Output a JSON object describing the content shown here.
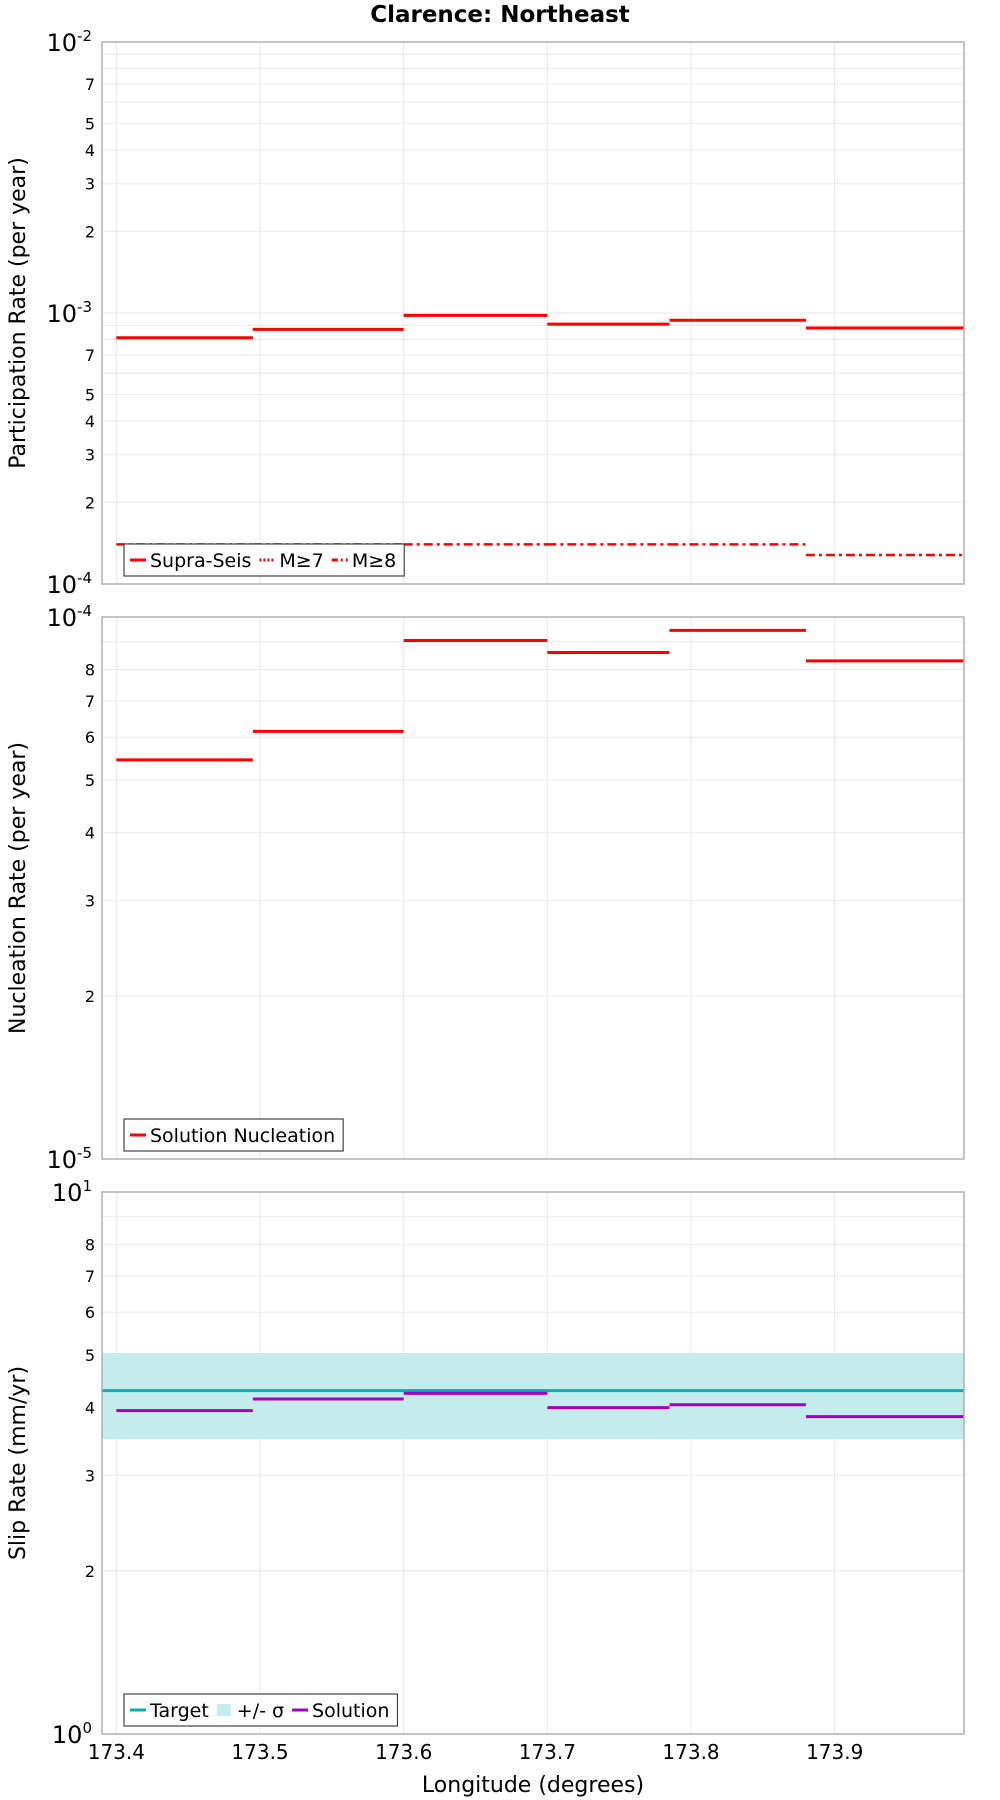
{
  "title": "Clarence: Northeast",
  "xlabel": "Longitude (degrees)",
  "xlim": [
    173.39,
    173.99
  ],
  "xticks": [
    "173.4",
    "173.5",
    "173.6",
    "173.7",
    "173.8",
    "173.9"
  ],
  "x_tick_values": [
    173.4,
    173.5,
    173.6,
    173.7,
    173.8,
    173.9
  ],
  "colors": {
    "red": "#ff0000",
    "teal": "#00b2b2",
    "band": "#c4ecec",
    "purple": "#a300c4",
    "grid": "#e8e8e8",
    "frame": "#b0b0b0"
  },
  "chart_data": [
    {
      "type": "line",
      "id": "participation",
      "ylabel": "Participation Rate (per year)",
      "yscale": "log",
      "ylim": [
        0.0001,
        0.01
      ],
      "decade_labels": [
        {
          "base": "10",
          "exp": "-4"
        },
        {
          "base": "10",
          "exp": "-3"
        },
        {
          "base": "10",
          "exp": "-2"
        }
      ],
      "minor_labels": [
        "2",
        "3",
        "4",
        "5",
        "7"
      ],
      "legend": [
        "Supra-Seis",
        "M≥7",
        "M≥8"
      ],
      "segments": [
        [
          173.4,
          173.495
        ],
        [
          173.495,
          173.6
        ],
        [
          173.6,
          173.7
        ],
        [
          173.7,
          173.785
        ],
        [
          173.785,
          173.88
        ],
        [
          173.88,
          173.99
        ]
      ],
      "series": [
        {
          "name": "Supra-Seis",
          "style": "solid",
          "values": [
            0.00081,
            0.00087,
            0.00098,
            0.00091,
            0.00094,
            0.00088
          ]
        },
        {
          "name": "M≥7",
          "style": "dotted",
          "values": [
            0.00081,
            0.00087,
            0.00098,
            0.00091,
            0.00094,
            0.00088
          ]
        },
        {
          "name": "M≥8",
          "style": "dashdot",
          "values": [
            0.00014,
            0.00014,
            0.00014,
            0.00014,
            0.00014,
            0.000128
          ]
        }
      ]
    },
    {
      "type": "line",
      "id": "nucleation",
      "ylabel": "Nucleation Rate (per year)",
      "yscale": "log",
      "ylim": [
        1e-05,
        0.0001
      ],
      "decade_labels": [
        {
          "base": "10",
          "exp": "-5"
        },
        {
          "base": "10",
          "exp": "-4"
        }
      ],
      "minor_labels": [
        "2",
        "3",
        "4",
        "5",
        "6",
        "7",
        "8"
      ],
      "legend": [
        "Solution Nucleation"
      ],
      "segments": [
        [
          173.4,
          173.495
        ],
        [
          173.495,
          173.6
        ],
        [
          173.6,
          173.7
        ],
        [
          173.7,
          173.785
        ],
        [
          173.785,
          173.88
        ],
        [
          173.88,
          173.99
        ]
      ],
      "series": [
        {
          "name": "Solution Nucleation",
          "style": "solid",
          "values": [
            5.45e-05,
            6.15e-05,
            9.05e-05,
            8.6e-05,
            9.45e-05,
            8.3e-05
          ]
        }
      ]
    },
    {
      "type": "line",
      "id": "slip",
      "ylabel": "Slip Rate (mm/yr)",
      "yscale": "log",
      "ylim": [
        1,
        10
      ],
      "decade_labels": [
        {
          "base": "10",
          "exp": "0"
        },
        {
          "base": "10",
          "exp": "1"
        }
      ],
      "minor_labels": [
        "2",
        "3",
        "4",
        "5",
        "6",
        "7",
        "8"
      ],
      "legend": [
        "Target",
        "+/- σ",
        "Solution"
      ],
      "segments": [
        [
          173.4,
          173.495
        ],
        [
          173.495,
          173.6
        ],
        [
          173.6,
          173.7
        ],
        [
          173.7,
          173.785
        ],
        [
          173.785,
          173.88
        ],
        [
          173.88,
          173.99
        ]
      ],
      "target": 4.3,
      "band": [
        3.5,
        5.05
      ],
      "series": [
        {
          "name": "Solution",
          "style": "solid",
          "values": [
            3.95,
            4.15,
            4.25,
            4.0,
            4.05,
            3.85
          ]
        }
      ]
    }
  ]
}
